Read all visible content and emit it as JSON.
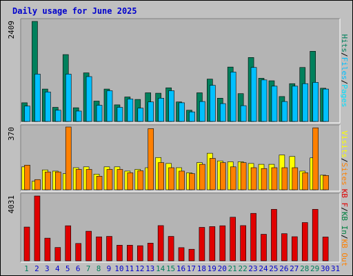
{
  "title": "Daily usage for June 2025",
  "colors": {
    "background": "#c0c0c0",
    "plot_bg": "#b4b4b4",
    "hits": "#00805c",
    "files": "#00c0ff",
    "pages": "#00e0ff",
    "visits": "#ffff00",
    "sites": "#ff8000",
    "kb_out": "#ff8000",
    "kb_in": "#008040",
    "kb_f": "#e00000",
    "weekend_label": "#00805c",
    "weekday_label": "#0000cc"
  },
  "chart_data": [
    {
      "type": "bar",
      "name": "hits-files-pages",
      "ymax_label": "2409",
      "ylim": [
        0,
        2409
      ],
      "legend": [
        "Hits",
        "/",
        "Files",
        "/",
        "Pages"
      ],
      "categories": [
        "1",
        "2",
        "3",
        "4",
        "5",
        "6",
        "7",
        "8",
        "9",
        "10",
        "11",
        "12",
        "13",
        "14",
        "15",
        "16",
        "17",
        "18",
        "19",
        "20",
        "21",
        "22",
        "23",
        "24",
        "25",
        "26",
        "27",
        "28",
        "29",
        "30",
        "31"
      ],
      "series": [
        {
          "name": "Hits",
          "values": [
            450,
            2409,
            780,
            340,
            1610,
            330,
            1170,
            490,
            780,
            400,
            590,
            530,
            690,
            680,
            810,
            470,
            270,
            690,
            1020,
            560,
            1310,
            670,
            1540,
            1040,
            980,
            600,
            910,
            1300,
            1690,
            800,
            0
          ]
        },
        {
          "name": "Files",
          "values": [
            370,
            1140,
            710,
            270,
            1140,
            250,
            1080,
            390,
            740,
            340,
            540,
            320,
            470,
            560,
            740,
            450,
            230,
            480,
            870,
            430,
            1190,
            380,
            1300,
            1000,
            850,
            480,
            850,
            910,
            940,
            780,
            0
          ]
        },
        {
          "name": "Pages",
          "values": [
            0,
            0,
            0,
            0,
            0,
            0,
            0,
            0,
            0,
            0,
            0,
            0,
            0,
            0,
            0,
            0,
            0,
            0,
            0,
            0,
            0,
            0,
            0,
            0,
            0,
            0,
            0,
            0,
            0,
            0,
            0
          ]
        }
      ]
    },
    {
      "type": "bar",
      "name": "visits-sites",
      "ymax_label": "370",
      "ylim": [
        0,
        370
      ],
      "legend": [
        "Visits",
        "/",
        "Sites"
      ],
      "categories": [
        "1",
        "2",
        "3",
        "4",
        "5",
        "6",
        "7",
        "8",
        "9",
        "10",
        "11",
        "12",
        "13",
        "14",
        "15",
        "16",
        "17",
        "18",
        "19",
        "20",
        "21",
        "22",
        "23",
        "24",
        "25",
        "26",
        "27",
        "28",
        "29",
        "30",
        "31"
      ],
      "series": [
        {
          "name": "Visits",
          "values": [
            135,
            50,
            117,
            110,
            95,
            130,
            135,
            92,
            135,
            135,
            110,
            120,
            130,
            190,
            155,
            130,
            100,
            160,
            215,
            170,
            165,
            165,
            155,
            150,
            150,
            205,
            196,
            110,
            188,
            86,
            0
          ]
        },
        {
          "name": "Sites",
          "values": [
            145,
            60,
            105,
            105,
            370,
            120,
            120,
            80,
            120,
            120,
            100,
            112,
            360,
            160,
            130,
            110,
            95,
            150,
            185,
            160,
            135,
            160,
            130,
            125,
            130,
            130,
            130,
            100,
            365,
            84,
            0
          ]
        }
      ]
    },
    {
      "type": "bar",
      "name": "kbf-kbin-kbout",
      "ymax_label": "4031",
      "ylim": [
        0,
        4031
      ],
      "legend": [
        "KB F",
        "/",
        "KB In",
        "/",
        "KB Out"
      ],
      "categories": [
        "1",
        "2",
        "3",
        "4",
        "5",
        "6",
        "7",
        "8",
        "9",
        "10",
        "11",
        "12",
        "13",
        "14",
        "15",
        "16",
        "17",
        "18",
        "19",
        "20",
        "21",
        "22",
        "23",
        "24",
        "25",
        "26",
        "27",
        "28",
        "29",
        "30",
        "31"
      ],
      "series": [
        {
          "name": "KB F",
          "values": [
            2100,
            4031,
            1410,
            830,
            2180,
            1080,
            1840,
            1490,
            1520,
            970,
            970,
            940,
            1100,
            2190,
            1520,
            820,
            720,
            2080,
            2130,
            2180,
            2710,
            2190,
            2950,
            1650,
            3200,
            1690,
            1500,
            2380,
            3200,
            1480,
            0
          ]
        },
        {
          "name": "KB In",
          "values": [
            0,
            0,
            0,
            0,
            0,
            0,
            0,
            0,
            0,
            0,
            0,
            0,
            0,
            0,
            0,
            0,
            0,
            0,
            0,
            0,
            0,
            0,
            0,
            0,
            0,
            0,
            0,
            0,
            0,
            0,
            0
          ]
        },
        {
          "name": "KB Out",
          "values": [
            0,
            0,
            0,
            0,
            0,
            0,
            0,
            0,
            0,
            0,
            0,
            0,
            0,
            0,
            0,
            0,
            0,
            0,
            0,
            0,
            0,
            0,
            0,
            0,
            0,
            0,
            0,
            0,
            0,
            0,
            0
          ]
        }
      ]
    }
  ],
  "weekend_days": [
    "1",
    "7",
    "8",
    "14",
    "15",
    "21",
    "22",
    "28",
    "29"
  ]
}
